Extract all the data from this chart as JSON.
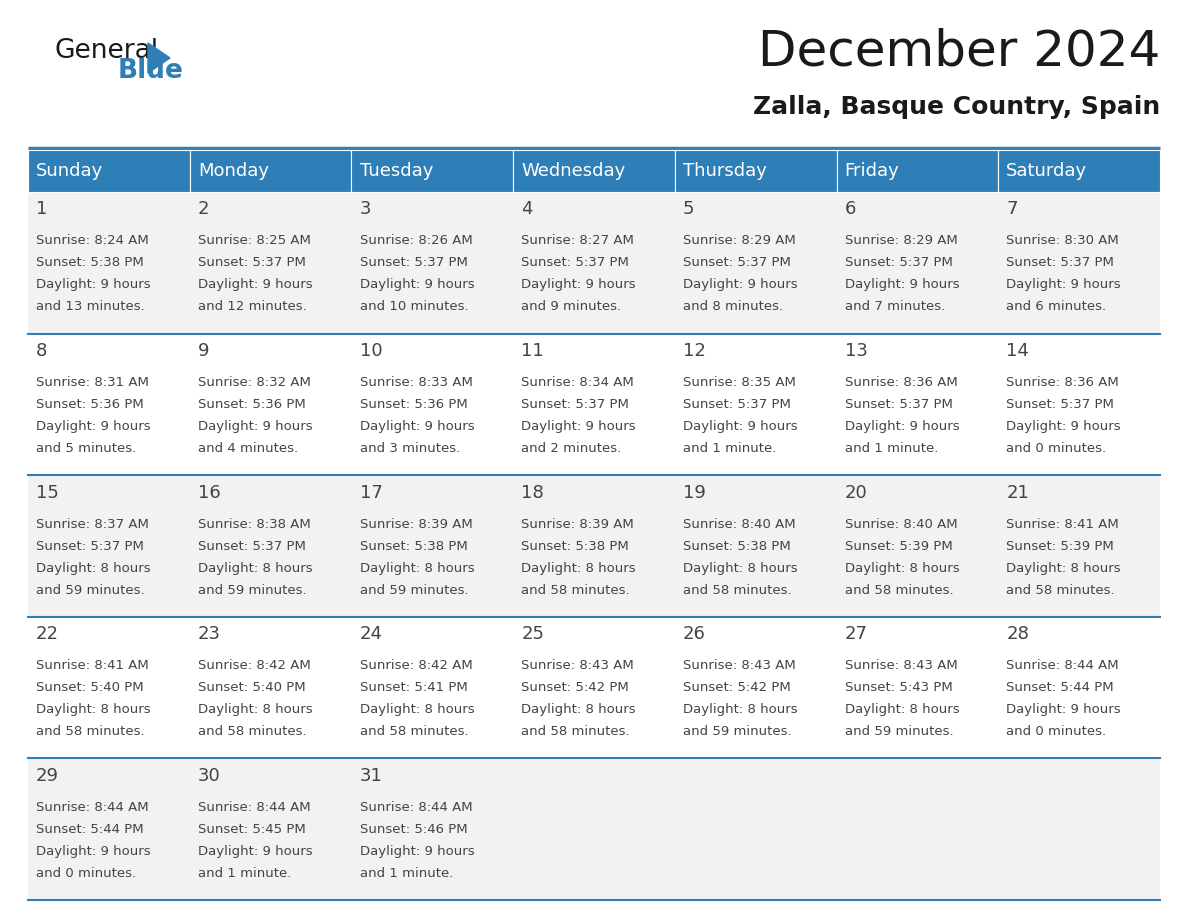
{
  "title": "December 2024",
  "subtitle": "Zalla, Basque Country, Spain",
  "header_color": "#2E7EB8",
  "header_text_color": "#FFFFFF",
  "cell_bg_even": "#F2F2F2",
  "cell_bg_odd": "#FFFFFF",
  "day_names": [
    "Sunday",
    "Monday",
    "Tuesday",
    "Wednesday",
    "Thursday",
    "Friday",
    "Saturday"
  ],
  "days": [
    {
      "day": 1,
      "col": 0,
      "row": 0,
      "sunrise": "8:24 AM",
      "sunset": "5:38 PM",
      "daylight_hrs": 9,
      "daylight_min": 13
    },
    {
      "day": 2,
      "col": 1,
      "row": 0,
      "sunrise": "8:25 AM",
      "sunset": "5:37 PM",
      "daylight_hrs": 9,
      "daylight_min": 12
    },
    {
      "day": 3,
      "col": 2,
      "row": 0,
      "sunrise": "8:26 AM",
      "sunset": "5:37 PM",
      "daylight_hrs": 9,
      "daylight_min": 10
    },
    {
      "day": 4,
      "col": 3,
      "row": 0,
      "sunrise": "8:27 AM",
      "sunset": "5:37 PM",
      "daylight_hrs": 9,
      "daylight_min": 9
    },
    {
      "day": 5,
      "col": 4,
      "row": 0,
      "sunrise": "8:29 AM",
      "sunset": "5:37 PM",
      "daylight_hrs": 9,
      "daylight_min": 8
    },
    {
      "day": 6,
      "col": 5,
      "row": 0,
      "sunrise": "8:29 AM",
      "sunset": "5:37 PM",
      "daylight_hrs": 9,
      "daylight_min": 7
    },
    {
      "day": 7,
      "col": 6,
      "row": 0,
      "sunrise": "8:30 AM",
      "sunset": "5:37 PM",
      "daylight_hrs": 9,
      "daylight_min": 6
    },
    {
      "day": 8,
      "col": 0,
      "row": 1,
      "sunrise": "8:31 AM",
      "sunset": "5:36 PM",
      "daylight_hrs": 9,
      "daylight_min": 5
    },
    {
      "day": 9,
      "col": 1,
      "row": 1,
      "sunrise": "8:32 AM",
      "sunset": "5:36 PM",
      "daylight_hrs": 9,
      "daylight_min": 4
    },
    {
      "day": 10,
      "col": 2,
      "row": 1,
      "sunrise": "8:33 AM",
      "sunset": "5:36 PM",
      "daylight_hrs": 9,
      "daylight_min": 3
    },
    {
      "day": 11,
      "col": 3,
      "row": 1,
      "sunrise": "8:34 AM",
      "sunset": "5:37 PM",
      "daylight_hrs": 9,
      "daylight_min": 2
    },
    {
      "day": 12,
      "col": 4,
      "row": 1,
      "sunrise": "8:35 AM",
      "sunset": "5:37 PM",
      "daylight_hrs": 9,
      "daylight_min": 1
    },
    {
      "day": 13,
      "col": 5,
      "row": 1,
      "sunrise": "8:36 AM",
      "sunset": "5:37 PM",
      "daylight_hrs": 9,
      "daylight_min": 1
    },
    {
      "day": 14,
      "col": 6,
      "row": 1,
      "sunrise": "8:36 AM",
      "sunset": "5:37 PM",
      "daylight_hrs": 9,
      "daylight_min": 0
    },
    {
      "day": 15,
      "col": 0,
      "row": 2,
      "sunrise": "8:37 AM",
      "sunset": "5:37 PM",
      "daylight_hrs": 8,
      "daylight_min": 59
    },
    {
      "day": 16,
      "col": 1,
      "row": 2,
      "sunrise": "8:38 AM",
      "sunset": "5:37 PM",
      "daylight_hrs": 8,
      "daylight_min": 59
    },
    {
      "day": 17,
      "col": 2,
      "row": 2,
      "sunrise": "8:39 AM",
      "sunset": "5:38 PM",
      "daylight_hrs": 8,
      "daylight_min": 59
    },
    {
      "day": 18,
      "col": 3,
      "row": 2,
      "sunrise": "8:39 AM",
      "sunset": "5:38 PM",
      "daylight_hrs": 8,
      "daylight_min": 58
    },
    {
      "day": 19,
      "col": 4,
      "row": 2,
      "sunrise": "8:40 AM",
      "sunset": "5:38 PM",
      "daylight_hrs": 8,
      "daylight_min": 58
    },
    {
      "day": 20,
      "col": 5,
      "row": 2,
      "sunrise": "8:40 AM",
      "sunset": "5:39 PM",
      "daylight_hrs": 8,
      "daylight_min": 58
    },
    {
      "day": 21,
      "col": 6,
      "row": 2,
      "sunrise": "8:41 AM",
      "sunset": "5:39 PM",
      "daylight_hrs": 8,
      "daylight_min": 58
    },
    {
      "day": 22,
      "col": 0,
      "row": 3,
      "sunrise": "8:41 AM",
      "sunset": "5:40 PM",
      "daylight_hrs": 8,
      "daylight_min": 58
    },
    {
      "day": 23,
      "col": 1,
      "row": 3,
      "sunrise": "8:42 AM",
      "sunset": "5:40 PM",
      "daylight_hrs": 8,
      "daylight_min": 58
    },
    {
      "day": 24,
      "col": 2,
      "row": 3,
      "sunrise": "8:42 AM",
      "sunset": "5:41 PM",
      "daylight_hrs": 8,
      "daylight_min": 58
    },
    {
      "day": 25,
      "col": 3,
      "row": 3,
      "sunrise": "8:43 AM",
      "sunset": "5:42 PM",
      "daylight_hrs": 8,
      "daylight_min": 58
    },
    {
      "day": 26,
      "col": 4,
      "row": 3,
      "sunrise": "8:43 AM",
      "sunset": "5:42 PM",
      "daylight_hrs": 8,
      "daylight_min": 59
    },
    {
      "day": 27,
      "col": 5,
      "row": 3,
      "sunrise": "8:43 AM",
      "sunset": "5:43 PM",
      "daylight_hrs": 8,
      "daylight_min": 59
    },
    {
      "day": 28,
      "col": 6,
      "row": 3,
      "sunrise": "8:44 AM",
      "sunset": "5:44 PM",
      "daylight_hrs": 9,
      "daylight_min": 0
    },
    {
      "day": 29,
      "col": 0,
      "row": 4,
      "sunrise": "8:44 AM",
      "sunset": "5:44 PM",
      "daylight_hrs": 9,
      "daylight_min": 0
    },
    {
      "day": 30,
      "col": 1,
      "row": 4,
      "sunrise": "8:44 AM",
      "sunset": "5:45 PM",
      "daylight_hrs": 9,
      "daylight_min": 1
    },
    {
      "day": 31,
      "col": 2,
      "row": 4,
      "sunrise": "8:44 AM",
      "sunset": "5:46 PM",
      "daylight_hrs": 9,
      "daylight_min": 1
    }
  ],
  "header_color_general": "#1a1a1a",
  "header_color_blue": "#2E7EB8",
  "title_fontsize": 36,
  "subtitle_fontsize": 18,
  "day_name_fontsize": 13,
  "day_num_fontsize": 13,
  "cell_text_fontsize": 9.5,
  "divider_color": "#2E7EB8",
  "text_color": "#444444"
}
